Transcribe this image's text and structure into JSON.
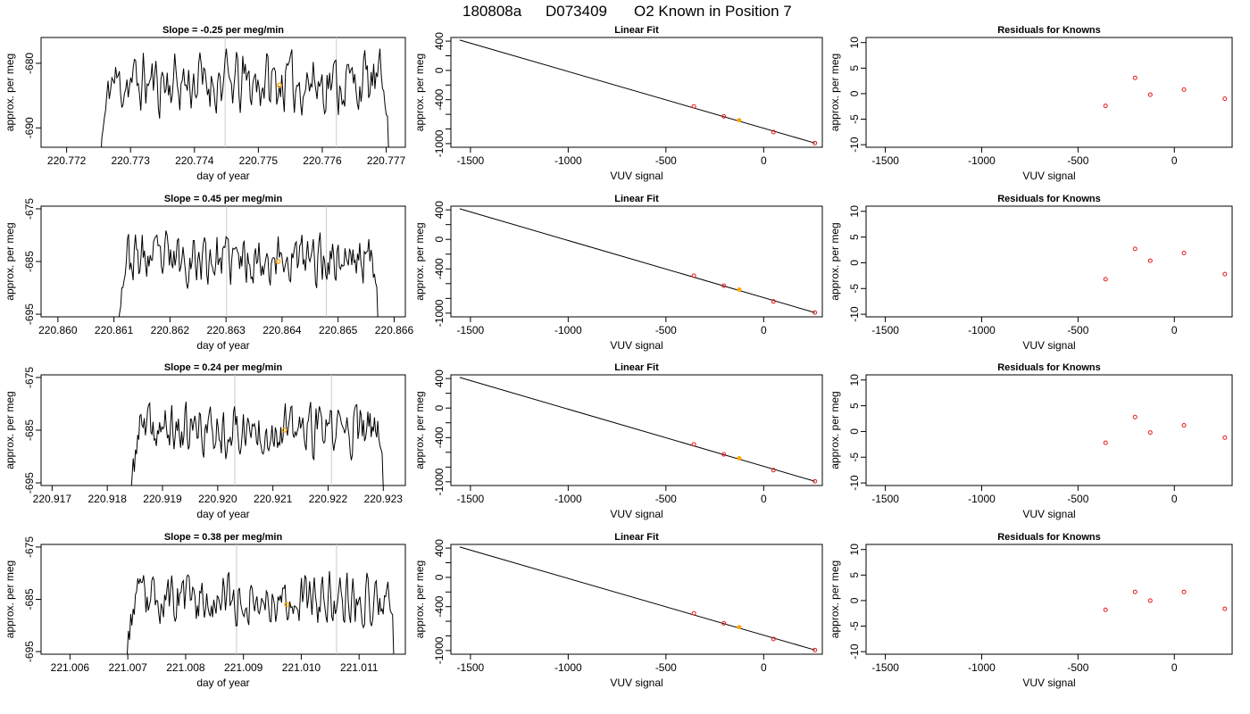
{
  "figure": {
    "title_parts": [
      "180808a",
      "D073409",
      "O2 Known in Position  7"
    ]
  },
  "colors": {
    "trace": "#000000",
    "vline": "#cccccc",
    "highlight": "#ffa500",
    "residual": "#e31a1c",
    "fit_point": "#e31a1c"
  },
  "chart_data": [
    {
      "type": "line",
      "row": 0,
      "col": 0,
      "title": "Slope =  -0.25  per meg/min",
      "xlabel": "day of year",
      "ylabel": "approx. per meg",
      "xlim": [
        220.7716,
        220.7773
      ],
      "ylim": [
        -693,
        -676
      ],
      "xticks": [
        220.772,
        220.773,
        220.774,
        220.775,
        220.776,
        220.777
      ],
      "xtick_labels": [
        "220.772",
        "220.773",
        "220.774",
        "220.775",
        "220.776",
        "220.777"
      ],
      "yticks": [
        -690,
        -680
      ],
      "ytick_labels": [
        "-690",
        "-680"
      ],
      "trace": {
        "x_start": 220.77253,
        "x_end": 220.77706,
        "base": -683.0,
        "seed": 11,
        "drop_start": -696,
        "drop_end": -696
      },
      "vlines": [
        220.77448,
        220.77622
      ],
      "highlight": {
        "x": 220.77533,
        "y": -683.4
      }
    },
    {
      "type": "scatter",
      "row": 0,
      "col": 1,
      "title": "Linear Fit",
      "xlabel": "VUV signal",
      "ylabel": "approx. per meg",
      "xlim": [
        -1600,
        300
      ],
      "ylim": [
        -1050,
        450
      ],
      "xticks": [
        -1500,
        -1000,
        -500,
        0
      ],
      "xtick_labels": [
        "-1500",
        "-1000",
        "-500",
        "0"
      ],
      "yticks": [
        -1000,
        -800,
        -600,
        -400,
        -200,
        0,
        200,
        400
      ],
      "ytick_labels": [
        "-1000",
        "",
        "",
        "-400",
        "",
        "0",
        "",
        "400"
      ],
      "fit_line": {
        "x": [
          -1555,
          262
        ],
        "y": [
          415,
          -993
        ]
      },
      "points": [
        {
          "x": -357,
          "y": -492
        },
        {
          "x": -204,
          "y": -628
        },
        {
          "x": 50,
          "y": -842
        },
        {
          "x": 262,
          "y": -993
        }
      ],
      "highlight": {
        "x": -125,
        "y": -681
      }
    },
    {
      "type": "scatter",
      "row": 0,
      "col": 2,
      "title": "Residuals for Knowns",
      "xlabel": "VUV signal",
      "ylabel": "approx. per meg",
      "xlim": [
        -1600,
        300
      ],
      "ylim": [
        -10.5,
        11
      ],
      "xticks": [
        -1500,
        -1000,
        -500,
        0
      ],
      "xtick_labels": [
        "-1500",
        "-1000",
        "-500",
        "0"
      ],
      "yticks": [
        -10,
        -5,
        0,
        5,
        10
      ],
      "ytick_labels": [
        "-10",
        "-5",
        "0",
        "5",
        "10"
      ],
      "points": [
        {
          "x": -357,
          "y": -2.4
        },
        {
          "x": -204,
          "y": 3.1
        },
        {
          "x": -125,
          "y": -0.2
        },
        {
          "x": 50,
          "y": 0.8
        },
        {
          "x": 262,
          "y": -1.0
        }
      ]
    },
    {
      "type": "line",
      "row": 1,
      "col": 0,
      "title": "Slope =  0.45  per meg/min",
      "xlabel": "day of year",
      "ylabel": "approx. per meg",
      "xlim": [
        220.8597,
        220.8662
      ],
      "ylim": [
        -695.5,
        -674.5
      ],
      "xticks": [
        220.86,
        220.861,
        220.862,
        220.863,
        220.864,
        220.865,
        220.866
      ],
      "xtick_labels": [
        "220.860",
        "220.861",
        "220.862",
        "220.863",
        "220.864",
        "220.865",
        "220.866"
      ],
      "yticks": [
        -695,
        -685,
        -675
      ],
      "ytick_labels": [
        "-695",
        "-685",
        "-675"
      ],
      "trace": {
        "x_start": 220.86108,
        "x_end": 220.86573,
        "base": -684.5,
        "seed": 23,
        "drop_start": -697,
        "drop_end": -697
      },
      "vlines": [
        220.86301,
        220.86479
      ],
      "highlight": {
        "x": 220.86393,
        "y": -685.0
      }
    },
    {
      "type": "scatter",
      "row": 1,
      "col": 1,
      "title": "Linear Fit",
      "xlabel": "VUV signal",
      "ylabel": "approx. per meg",
      "xlim": [
        -1600,
        300
      ],
      "ylim": [
        -1050,
        450
      ],
      "xticks": [
        -1500,
        -1000,
        -500,
        0
      ],
      "xtick_labels": [
        "-1500",
        "-1000",
        "-500",
        "0"
      ],
      "yticks": [
        -1000,
        -800,
        -600,
        -400,
        -200,
        0,
        200,
        400
      ],
      "ytick_labels": [
        "-1000",
        "",
        "",
        "-400",
        "",
        "0",
        "",
        "400"
      ],
      "fit_line": {
        "x": [
          -1555,
          262
        ],
        "y": [
          415,
          -993
        ]
      },
      "points": [
        {
          "x": -357,
          "y": -492
        },
        {
          "x": -204,
          "y": -628
        },
        {
          "x": 50,
          "y": -842
        },
        {
          "x": 262,
          "y": -993
        }
      ],
      "highlight": {
        "x": -125,
        "y": -681
      }
    },
    {
      "type": "scatter",
      "row": 1,
      "col": 2,
      "title": "Residuals for Knowns",
      "xlabel": "VUV signal",
      "ylabel": "approx. per meg",
      "xlim": [
        -1600,
        300
      ],
      "ylim": [
        -10.5,
        11
      ],
      "xticks": [
        -1500,
        -1000,
        -500,
        0
      ],
      "xtick_labels": [
        "-1500",
        "-1000",
        "-500",
        "0"
      ],
      "yticks": [
        -10,
        -5,
        0,
        5,
        10
      ],
      "ytick_labels": [
        "-10",
        "-5",
        "0",
        "5",
        "10"
      ],
      "points": [
        {
          "x": -357,
          "y": -3.2
        },
        {
          "x": -204,
          "y": 2.7
        },
        {
          "x": -125,
          "y": 0.4
        },
        {
          "x": 50,
          "y": 1.9
        },
        {
          "x": 262,
          "y": -2.2
        }
      ]
    },
    {
      "type": "line",
      "row": 2,
      "col": 0,
      "title": "Slope =  0.24  per meg/min",
      "xlabel": "day of year",
      "ylabel": "approx. per meg",
      "xlim": [
        220.9168,
        220.9234
      ],
      "ylim": [
        -695.5,
        -674.5
      ],
      "xticks": [
        220.917,
        220.918,
        220.919,
        220.92,
        220.921,
        220.922,
        220.923
      ],
      "xtick_labels": [
        "220.917",
        "220.918",
        "220.919",
        "220.920",
        "220.921",
        "220.922",
        "220.923"
      ],
      "yticks": [
        -695,
        -685,
        -675
      ],
      "ytick_labels": [
        "-695",
        "-685",
        "-675"
      ],
      "trace": {
        "x_start": 220.91843,
        "x_end": 220.92302,
        "base": -685.0,
        "seed": 37,
        "drop_start": -697,
        "drop_end": -697
      },
      "vlines": [
        220.92031,
        220.92206
      ],
      "highlight": {
        "x": 220.92121,
        "y": -685.0
      }
    },
    {
      "type": "scatter",
      "row": 2,
      "col": 1,
      "title": "Linear Fit",
      "xlabel": "VUV signal",
      "ylabel": "approx. per meg",
      "xlim": [
        -1600,
        300
      ],
      "ylim": [
        -1050,
        450
      ],
      "xticks": [
        -1500,
        -1000,
        -500,
        0
      ],
      "xtick_labels": [
        "-1500",
        "-1000",
        "-500",
        "0"
      ],
      "yticks": [
        -1000,
        -800,
        -600,
        -400,
        -200,
        0,
        200,
        400
      ],
      "ytick_labels": [
        "-1000",
        "",
        "",
        "-400",
        "",
        "0",
        "",
        "400"
      ],
      "fit_line": {
        "x": [
          -1555,
          262
        ],
        "y": [
          415,
          -993
        ]
      },
      "points": [
        {
          "x": -357,
          "y": -492
        },
        {
          "x": -204,
          "y": -628
        },
        {
          "x": 50,
          "y": -842
        },
        {
          "x": 262,
          "y": -993
        }
      ],
      "highlight": {
        "x": -125,
        "y": -681
      }
    },
    {
      "type": "scatter",
      "row": 2,
      "col": 2,
      "title": "Residuals for Knowns",
      "xlabel": "VUV signal",
      "ylabel": "approx. per meg",
      "xlim": [
        -1600,
        300
      ],
      "ylim": [
        -10.5,
        11
      ],
      "xticks": [
        -1500,
        -1000,
        -500,
        0
      ],
      "xtick_labels": [
        "-1500",
        "-1000",
        "-500",
        "0"
      ],
      "yticks": [
        -10,
        -5,
        0,
        5,
        10
      ],
      "ytick_labels": [
        "-10",
        "-5",
        "0",
        "5",
        "10"
      ],
      "points": [
        {
          "x": -357,
          "y": -2.2
        },
        {
          "x": -204,
          "y": 2.8
        },
        {
          "x": -125,
          "y": -0.2
        },
        {
          "x": 50,
          "y": 1.2
        },
        {
          "x": 262,
          "y": -1.2
        }
      ]
    },
    {
      "type": "line",
      "row": 3,
      "col": 0,
      "title": "Slope =  0.38  per meg/min",
      "xlabel": "day of year",
      "ylabel": "approx. per meg",
      "xlim": [
        221.0055,
        221.0118
      ],
      "ylim": [
        -695.5,
        -674.5
      ],
      "xticks": [
        221.006,
        221.007,
        221.008,
        221.009,
        221.01,
        221.011
      ],
      "xtick_labels": [
        "221.006",
        "221.007",
        "221.008",
        "221.009",
        "221.010",
        "221.011"
      ],
      "yticks": [
        -695,
        -685,
        -675
      ],
      "ytick_labels": [
        "-695",
        "-685",
        "-675"
      ],
      "trace": {
        "x_start": 221.00697,
        "x_end": 221.01162,
        "base": -685.0,
        "seed": 53,
        "drop_start": -697,
        "drop_end": -697
      },
      "vlines": [
        221.00888,
        221.01061
      ],
      "highlight": {
        "x": 221.00975,
        "y": -686.0
      }
    },
    {
      "type": "scatter",
      "row": 3,
      "col": 1,
      "title": "Linear Fit",
      "xlabel": "VUV signal",
      "ylabel": "approx. per meg",
      "xlim": [
        -1600,
        300
      ],
      "ylim": [
        -1050,
        450
      ],
      "xticks": [
        -1500,
        -1000,
        -500,
        0
      ],
      "xtick_labels": [
        "-1500",
        "-1000",
        "-500",
        "0"
      ],
      "yticks": [
        -1000,
        -800,
        -600,
        -400,
        -200,
        0,
        200,
        400
      ],
      "ytick_labels": [
        "-1000",
        "",
        "",
        "-400",
        "",
        "0",
        "",
        "400"
      ],
      "fit_line": {
        "x": [
          -1555,
          262
        ],
        "y": [
          415,
          -993
        ]
      },
      "points": [
        {
          "x": -357,
          "y": -492
        },
        {
          "x": -204,
          "y": -628
        },
        {
          "x": 50,
          "y": -842
        },
        {
          "x": 262,
          "y": -993
        }
      ],
      "highlight": {
        "x": -125,
        "y": -681
      }
    },
    {
      "type": "scatter",
      "row": 3,
      "col": 2,
      "title": "Residuals for Knowns",
      "xlabel": "VUV signal",
      "ylabel": "approx. per meg",
      "xlim": [
        -1600,
        300
      ],
      "ylim": [
        -10.5,
        11
      ],
      "xticks": [
        -1500,
        -1000,
        -500,
        0
      ],
      "xtick_labels": [
        "-1500",
        "-1000",
        "-500",
        "0"
      ],
      "yticks": [
        -10,
        -5,
        0,
        5,
        10
      ],
      "ytick_labels": [
        "-10",
        "-5",
        "0",
        "5",
        "10"
      ],
      "points": [
        {
          "x": -357,
          "y": -1.8
        },
        {
          "x": -204,
          "y": 1.7
        },
        {
          "x": -125,
          "y": 0.0
        },
        {
          "x": 50,
          "y": 1.7
        },
        {
          "x": 262,
          "y": -1.6
        }
      ]
    }
  ]
}
